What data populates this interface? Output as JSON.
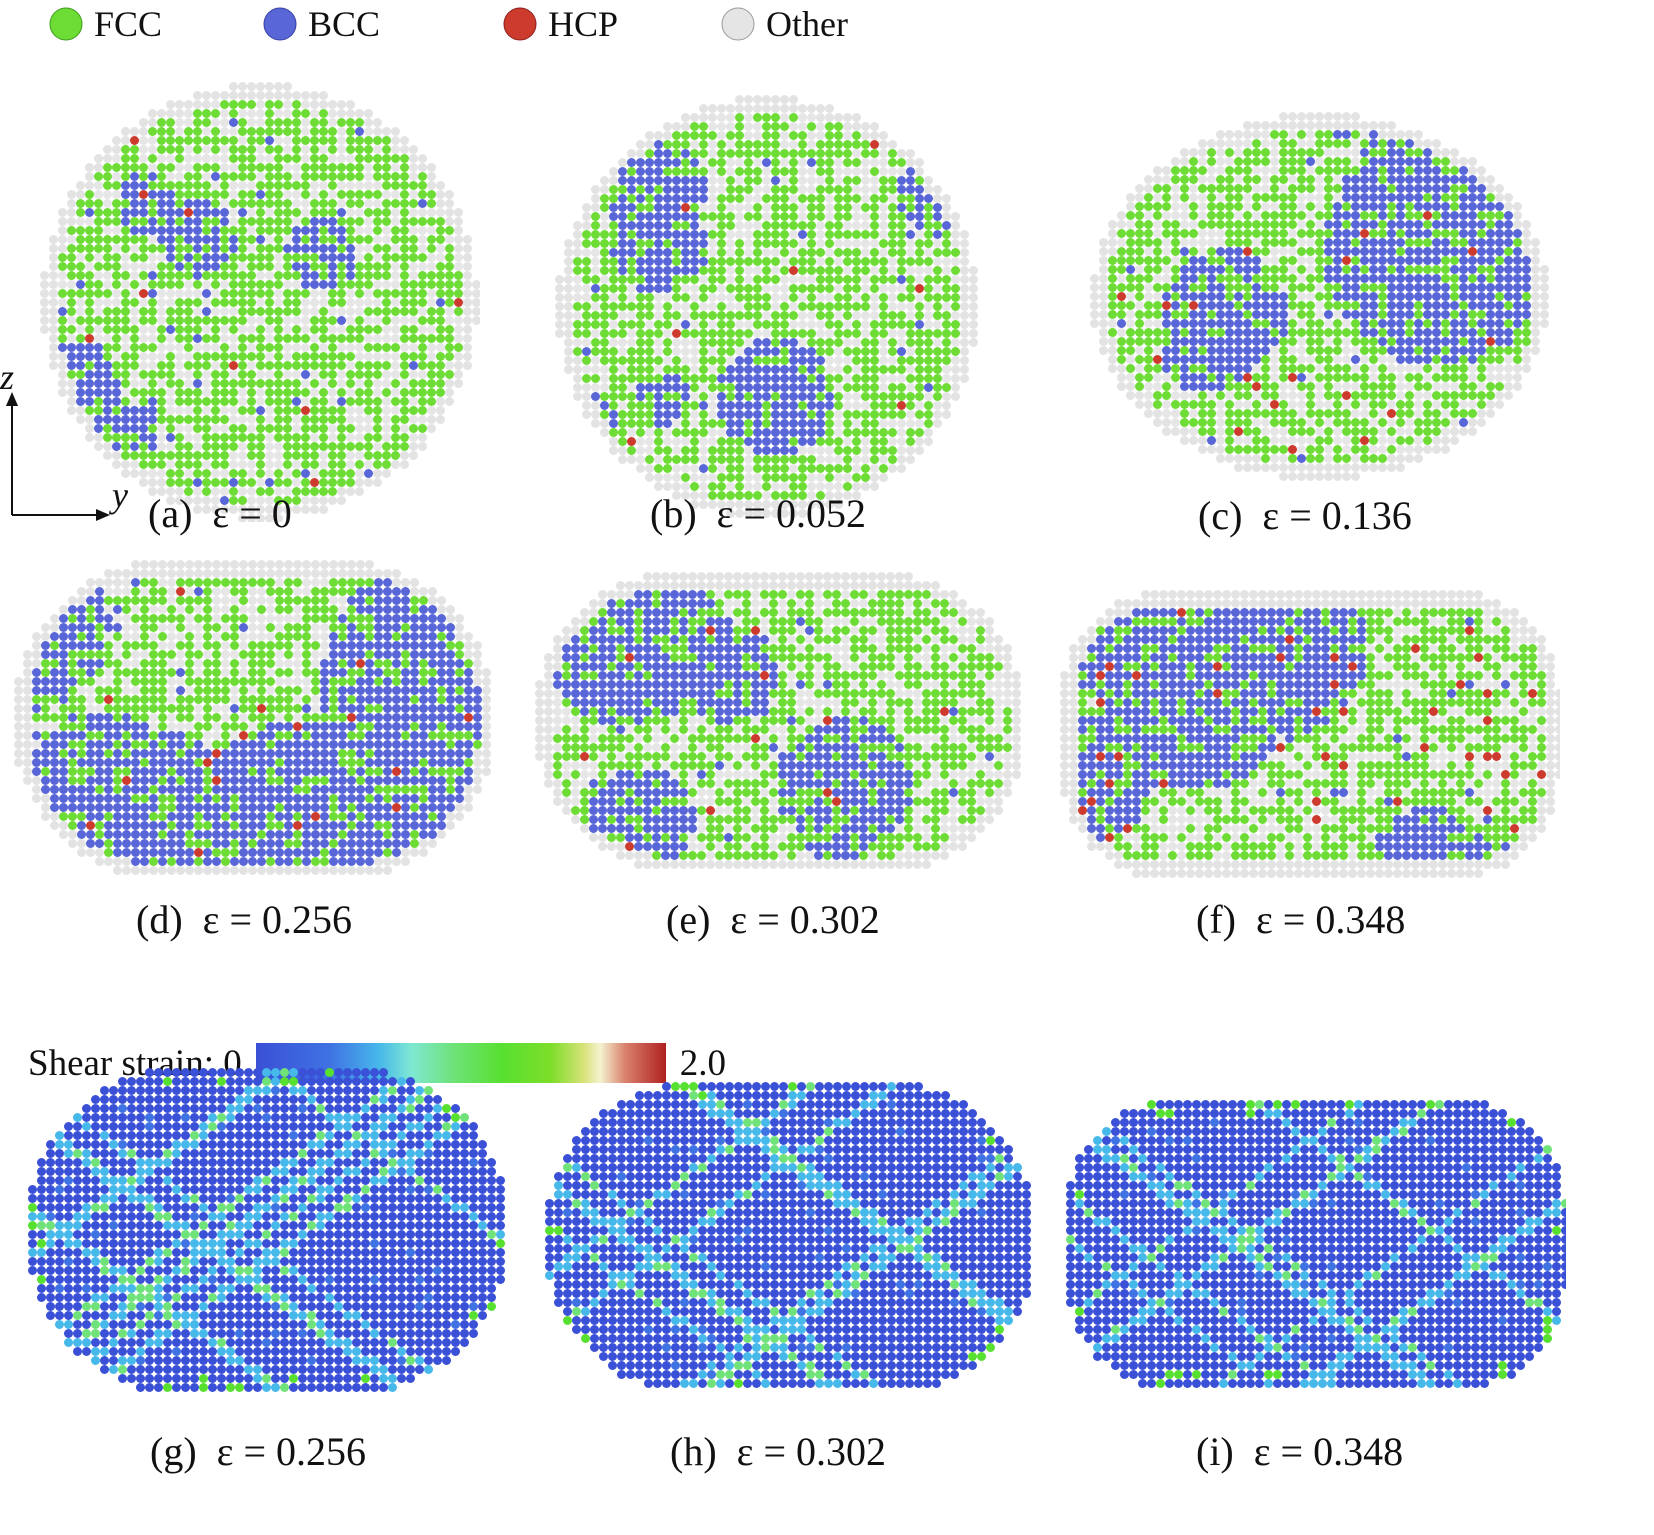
{
  "legend": [
    {
      "label": "FCC",
      "color": "#6ddc35"
    },
    {
      "label": "BCC",
      "color": "#5866d8"
    },
    {
      "label": "HCP",
      "color": "#cc3b2e"
    },
    {
      "label": "Other",
      "color": "#e5e5e5"
    }
  ],
  "axes": {
    "vertical": "z",
    "horizontal": "y"
  },
  "structure_panels": [
    {
      "id": "a",
      "caption": "(a)  ε = 0"
    },
    {
      "id": "b",
      "caption": "(b)  ε = 0.052"
    },
    {
      "id": "c",
      "caption": "(c)  ε = 0.136"
    },
    {
      "id": "d",
      "caption": "(d)  ε = 0.256"
    },
    {
      "id": "e",
      "caption": "(e)  ε = 0.302"
    },
    {
      "id": "f",
      "caption": "(f)  ε = 0.348"
    }
  ],
  "colorbar": {
    "label": "Shear strain: 0",
    "max_label": "2.0"
  },
  "strain_panels": [
    {
      "id": "g",
      "caption": "(g)  ε = 0.256"
    },
    {
      "id": "h",
      "caption": "(h)  ε = 0.302"
    },
    {
      "id": "i",
      "caption": "(i)  ε = 0.348"
    }
  ]
}
